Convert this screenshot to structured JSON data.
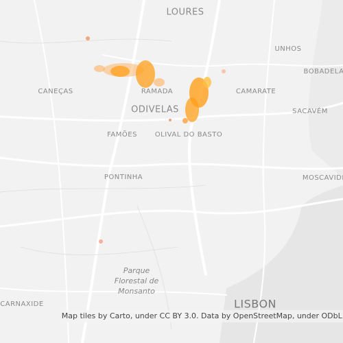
{
  "map": {
    "places": [
      "LOURES",
      "UNHOS",
      "BOBADELA",
      "CANEÇAS",
      "RAMADA",
      "CAMARATE",
      "ODIVELAS",
      "SACAVÉM",
      "FAMÕES",
      "OLIVAL DO BASTO",
      "PONTINHA",
      "MOSCAVIDE",
      "CARNAXIDE",
      "LISBON"
    ],
    "park": [
      "Parque",
      "Florestal de",
      "Monsanto"
    ],
    "attribution": "Map tiles by Carto, under CC BY 3.0. Data by OpenStreetMap, under ODbL."
  }
}
